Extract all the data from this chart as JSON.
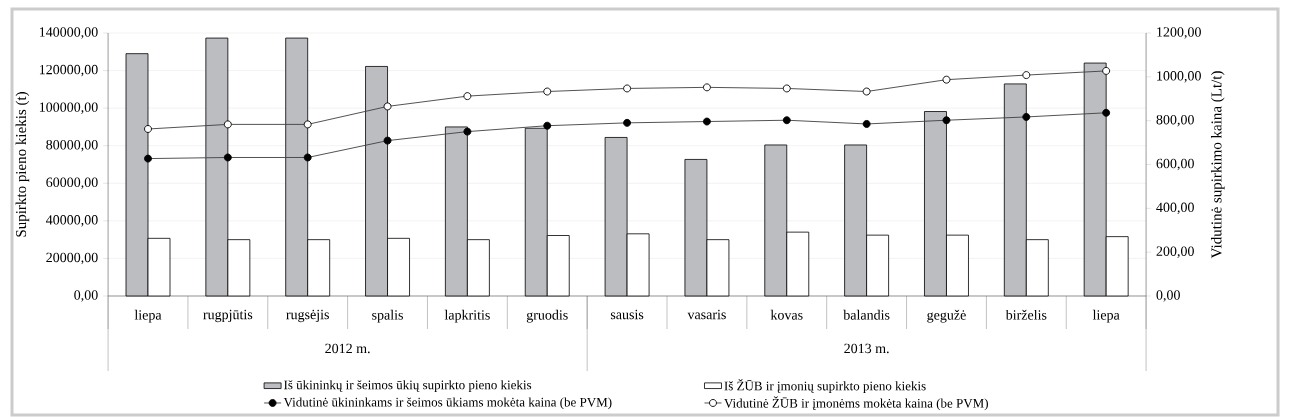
{
  "chart_data": {
    "type": "bar",
    "ylabel": "Supirkto pieno kiekis (t)",
    "y2label": "Vidutinė supirkimo kaina (Lt/t)",
    "categories": [
      "liepa",
      "rugpjūtis",
      "rugsėjis",
      "spalis",
      "lapkritis",
      "gruodis",
      "sausis",
      "vasaris",
      "kovas",
      "balandis",
      "gegužė",
      "birželis",
      "liepa"
    ],
    "series": [
      {
        "name": "Iš ūkininkų ir šeimos ūkių supirkto pieno kiekis",
        "color": "#bcbdc1",
        "values": [
          129000,
          137300,
          137300,
          122200,
          90000,
          89300,
          84400,
          72700,
          80400,
          80400,
          98200,
          112900,
          124000
        ]
      },
      {
        "name": "Iš ŽŪB ir įmonių supirkto pieno kiekis",
        "color": "#ffffff",
        "values": [
          30700,
          30000,
          30000,
          30700,
          30000,
          32200,
          33100,
          30000,
          34000,
          32400,
          32400,
          30000,
          31600
        ]
      },
      {
        "name": "Vidutinė ūkininkams ir šeimos ūkiams mokėta kaina (be PVM)",
        "type": "line",
        "axis": "y2",
        "color": "#000000",
        "values": [
          627,
          632,
          632,
          709,
          750,
          777,
          790,
          796,
          802,
          785,
          802,
          817,
          836
        ]
      },
      {
        "name": "Vidutinė ŽŪB ir įmonėms mokėta kaina (be PVM)",
        "type": "line",
        "axis": "y2",
        "color": "#ffffff",
        "values": [
          762,
          783,
          783,
          865,
          912,
          933,
          947,
          952,
          947,
          933,
          987,
          1008,
          1027
        ]
      }
    ],
    "ylim": [
      0,
      140000
    ],
    "yticks": [
      {
        "value": 0,
        "label": "0,00"
      },
      {
        "value": 20000,
        "label": "20000,00"
      },
      {
        "value": 40000,
        "label": "40000,00"
      },
      {
        "value": 60000,
        "label": "60000,00"
      },
      {
        "value": 80000,
        "label": "80000,00"
      },
      {
        "value": 100000,
        "label": "100000,00"
      },
      {
        "value": 120000,
        "label": "120000,00"
      },
      {
        "value": 140000,
        "label": "140000,00"
      }
    ],
    "y2lim": [
      0,
      1200
    ],
    "y2ticks": [
      {
        "value": 0,
        "label": "0,00"
      },
      {
        "value": 200,
        "label": "200,00"
      },
      {
        "value": 400,
        "label": "400,00"
      },
      {
        "value": 600,
        "label": "600,00"
      },
      {
        "value": 800,
        "label": "800,00"
      },
      {
        "value": 1000,
        "label": "1000,00"
      },
      {
        "value": 1200,
        "label": "1200,00"
      }
    ],
    "annotations": [
      "2012 m.",
      "2013 m."
    ],
    "grid": "y",
    "legend": "bottom",
    "marker": "circle"
  }
}
